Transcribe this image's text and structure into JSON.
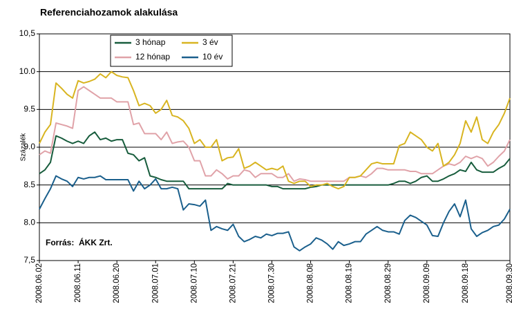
{
  "chart_data": {
    "type": "line",
    "title": "Referenciahozamok alakulása",
    "y_label": "Százalék",
    "annotation": "Forrás:  ÁKK Zrt.",
    "categories": [
      "2008.06.02",
      null,
      null,
      null,
      null,
      null,
      null,
      "2008.06.11",
      null,
      null,
      null,
      null,
      null,
      null,
      "2008.06.20",
      null,
      null,
      null,
      null,
      null,
      null,
      "2008.07.01",
      null,
      null,
      null,
      null,
      null,
      null,
      "2008.07.10",
      null,
      null,
      null,
      null,
      null,
      null,
      "2008.07.21",
      null,
      null,
      null,
      null,
      null,
      null,
      "2008.07.30",
      null,
      null,
      null,
      null,
      null,
      null,
      "2008.08.08",
      null,
      null,
      null,
      null,
      null,
      null,
      "2008.08.19",
      null,
      null,
      null,
      null,
      null,
      null,
      "2008.08.29",
      null,
      null,
      null,
      null,
      null,
      null,
      "2008.09.09",
      null,
      null,
      null,
      null,
      null,
      null,
      "2008.09.18",
      null,
      null,
      null,
      null,
      null,
      null,
      null,
      "2008.09.30"
    ],
    "series": [
      {
        "name": "3 hónap",
        "color": "#175c3c",
        "values": [
          8.65,
          8.7,
          8.8,
          9.15,
          9.12,
          9.08,
          9.05,
          9.08,
          9.05,
          9.15,
          9.2,
          9.1,
          9.12,
          9.08,
          9.1,
          9.1,
          8.92,
          8.9,
          8.82,
          8.86,
          8.62,
          8.6,
          8.57,
          8.55,
          8.55,
          8.55,
          8.55,
          8.45,
          8.45,
          8.45,
          8.45,
          8.45,
          8.45,
          8.45,
          8.52,
          8.5,
          8.5,
          8.5,
          8.5,
          8.5,
          8.5,
          8.5,
          8.48,
          8.48,
          8.45,
          8.45,
          8.45,
          8.45,
          8.45,
          8.47,
          8.48,
          8.5,
          8.5,
          8.5,
          8.5,
          8.5,
          8.5,
          8.5,
          8.5,
          8.5,
          8.5,
          8.5,
          8.5,
          8.5,
          8.52,
          8.55,
          8.55,
          8.52,
          8.55,
          8.6,
          8.62,
          8.55,
          8.55,
          8.58,
          8.62,
          8.65,
          8.7,
          8.68,
          8.8,
          8.7,
          8.67,
          8.67,
          8.67,
          8.72,
          8.76,
          8.85
        ]
      },
      {
        "name": "12 hónap",
        "color": "#e0a2a8",
        "values": [
          8.9,
          8.95,
          8.92,
          9.32,
          9.3,
          9.28,
          9.25,
          9.75,
          9.8,
          9.75,
          9.7,
          9.65,
          9.65,
          9.65,
          9.6,
          9.6,
          9.6,
          9.3,
          9.32,
          9.18,
          9.18,
          9.18,
          9.1,
          9.2,
          9.05,
          9.07,
          9.08,
          9.0,
          8.82,
          8.82,
          8.62,
          8.62,
          8.7,
          8.65,
          8.58,
          8.62,
          8.62,
          8.7,
          8.68,
          8.6,
          8.65,
          8.65,
          8.65,
          8.6,
          8.6,
          8.65,
          8.55,
          8.58,
          8.57,
          8.55,
          8.55,
          8.55,
          8.55,
          8.55,
          8.55,
          8.55,
          8.6,
          8.6,
          8.62,
          8.6,
          8.65,
          8.72,
          8.72,
          8.7,
          8.7,
          8.7,
          8.7,
          8.68,
          8.68,
          8.65,
          8.65,
          8.65,
          8.7,
          8.75,
          8.78,
          8.76,
          8.8,
          8.88,
          8.85,
          8.88,
          8.85,
          8.75,
          8.8,
          8.88,
          8.95,
          9.1
        ]
      },
      {
        "name": "3 év",
        "color": "#d8b420",
        "values": [
          9.05,
          9.2,
          9.3,
          9.85,
          9.78,
          9.7,
          9.65,
          9.88,
          9.85,
          9.87,
          9.9,
          9.97,
          9.92,
          10.0,
          9.95,
          9.93,
          9.92,
          9.75,
          9.55,
          9.58,
          9.55,
          9.45,
          9.5,
          9.62,
          9.42,
          9.4,
          9.35,
          9.25,
          9.05,
          9.1,
          9.0,
          9.0,
          9.1,
          8.82,
          8.86,
          8.87,
          8.98,
          8.72,
          8.75,
          8.8,
          8.75,
          8.7,
          8.72,
          8.7,
          8.75,
          8.55,
          8.52,
          8.55,
          8.55,
          8.48,
          8.5,
          8.5,
          8.52,
          8.48,
          8.45,
          8.48,
          8.6,
          8.6,
          8.62,
          8.7,
          8.78,
          8.8,
          8.78,
          8.78,
          8.78,
          9.02,
          9.05,
          9.2,
          9.15,
          9.1,
          9.0,
          8.95,
          9.05,
          8.75,
          8.8,
          8.9,
          9.05,
          9.35,
          9.2,
          9.4,
          9.1,
          9.05,
          9.2,
          9.3,
          9.45,
          9.65
        ]
      },
      {
        "name": "10 év",
        "color": "#1a5f8c",
        "values": [
          8.18,
          8.32,
          8.45,
          8.62,
          8.58,
          8.55,
          8.48,
          8.6,
          8.58,
          8.6,
          8.6,
          8.62,
          8.57,
          8.57,
          8.57,
          8.57,
          8.57,
          8.42,
          8.55,
          8.45,
          8.5,
          8.58,
          8.45,
          8.45,
          8.47,
          8.45,
          8.17,
          8.25,
          8.24,
          8.22,
          8.3,
          7.9,
          7.95,
          7.92,
          7.9,
          7.98,
          7.82,
          7.75,
          7.78,
          7.82,
          7.8,
          7.85,
          7.83,
          7.86,
          7.86,
          7.88,
          7.68,
          7.63,
          7.68,
          7.72,
          7.8,
          7.77,
          7.72,
          7.65,
          7.75,
          7.7,
          7.72,
          7.75,
          7.75,
          7.85,
          7.9,
          7.95,
          7.9,
          7.88,
          7.88,
          7.85,
          8.03,
          8.1,
          8.07,
          8.02,
          7.97,
          7.83,
          7.82,
          8.0,
          8.15,
          8.25,
          8.08,
          8.3,
          7.92,
          7.82,
          7.87,
          7.9,
          7.95,
          7.97,
          8.05,
          8.18
        ]
      }
    ],
    "ylim": [
      7.5,
      10.5
    ],
    "yticks": [
      {
        "value": 10.5,
        "label": "10,5"
      },
      {
        "value": 10,
        "label": "10.0"
      },
      9.5,
      {
        "value": 9,
        "label": "9.0"
      },
      8.5,
      {
        "value": 8,
        "label": "8.0"
      },
      {
        "value": 7.5,
        "label": "7,5"
      }
    ],
    "grid": true,
    "legend": "top-left"
  }
}
